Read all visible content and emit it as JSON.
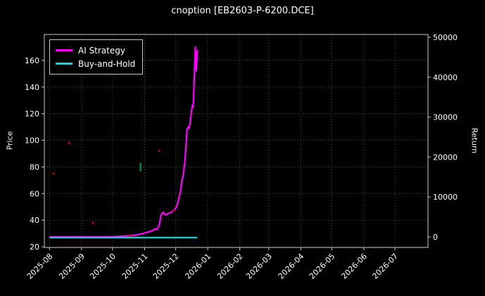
{
  "chart": {
    "title": "cnoption [EB2603-P-6200.DCE]"
  },
  "chart_data": {
    "type": "line",
    "title": "cnoption [EB2603-P-6200.DCE]",
    "xlabel": "",
    "ylabel_left": "Price",
    "ylabel_right": "Return",
    "background": "#000000",
    "grid": "dotted",
    "legend_position": "upper left",
    "x_ticks": [
      "2025-08",
      "2025-09",
      "2025-10",
      "2025-11",
      "2025-12",
      "2026-01",
      "2026-02",
      "2026-03",
      "2026-04",
      "2026-05",
      "2026-06",
      "2026-07"
    ],
    "y_ticks_left": [
      20,
      40,
      60,
      80,
      100,
      120,
      140,
      160
    ],
    "y_ticks_right": [
      0,
      10000,
      20000,
      30000,
      40000,
      50000
    ],
    "x_range": [
      "2025-07-27",
      "2026-08-02"
    ],
    "ylim_left": [
      19.5,
      179.5
    ],
    "ylim_right": [
      -2640,
      50700
    ],
    "series": [
      {
        "name": "AI Strategy",
        "color": "#ff00ff",
        "axis": "left",
        "x": [
          "2025-08-01",
          "2025-08-20",
          "2025-09-10",
          "2025-09-30",
          "2025-10-10",
          "2025-10-20",
          "2025-10-28",
          "2025-11-04",
          "2025-11-08",
          "2025-11-11",
          "2025-11-13",
          "2025-11-15",
          "2025-11-17",
          "2025-11-19",
          "2025-11-21",
          "2025-11-24",
          "2025-11-27",
          "2025-11-30",
          "2025-12-02",
          "2025-12-04",
          "2025-12-06",
          "2025-12-07",
          "2025-12-08",
          "2025-12-09",
          "2025-12-10",
          "2025-12-11",
          "2025-12-12",
          "2025-12-13",
          "2025-12-14",
          "2025-12-15",
          "2025-12-16",
          "2025-12-17",
          "2025-12-18",
          "2025-12-19",
          "2025-12-20",
          "2025-12-21",
          "2025-12-22"
        ],
        "y": [
          27.5,
          27.5,
          27.5,
          27.5,
          28,
          28.5,
          29.5,
          31,
          32,
          33.5,
          33,
          36,
          44,
          46,
          44,
          45,
          46,
          48,
          50,
          56,
          63,
          70,
          72,
          78,
          85,
          96,
          108,
          110,
          109,
          113,
          120,
          126,
          125,
          147,
          170,
          152,
          168
        ]
      },
      {
        "name": "Buy-and-Hold",
        "color": "#00e0e0",
        "axis": "left",
        "x": [
          "2025-08-01",
          "2025-12-22"
        ],
        "y": [
          27,
          27
        ]
      }
    ],
    "markers": [
      {
        "name": "sell-signals",
        "color": "#c00000",
        "shape": "dot",
        "points": [
          [
            "2025-08-05",
            75
          ],
          [
            "2025-08-20",
            98
          ],
          [
            "2025-09-12",
            38
          ],
          [
            "2025-10-18",
            28.5
          ],
          [
            "2025-11-15",
            92
          ],
          [
            "2025-11-29",
            47
          ]
        ]
      },
      {
        "name": "buy-signals",
        "color": "#00a550",
        "shape": "dash",
        "points": [
          [
            "2025-10-28",
            80
          ]
        ]
      }
    ]
  }
}
